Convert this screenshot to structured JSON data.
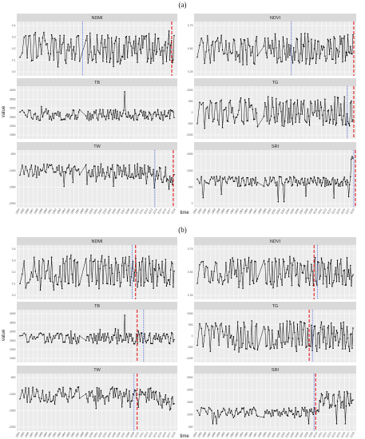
{
  "figure": {
    "a": {
      "label": "(a)",
      "panels": [
        {
          "name": "NDMI",
          "yticks": [
            "0.4",
            "0.3",
            "0.2",
            "0.1",
            "0.0"
          ],
          "vlines": [
            {
              "x": 0.41,
              "style": "dot"
            },
            {
              "x": 0.965,
              "style": "dash"
            }
          ],
          "seed": 11,
          "kind": "osc",
          "amp": 0.38
        },
        {
          "name": "NDVI",
          "yticks": [
            "0.75",
            "0.50",
            "0.25"
          ],
          "vlines": [
            {
              "x": 0.6,
              "style": "dot"
            },
            {
              "x": 0.985,
              "style": "dash"
            }
          ],
          "seed": 23,
          "kind": "osc",
          "amp": 0.35
        },
        {
          "name": "TB",
          "yticks": [
            "4000",
            "3500",
            "3000",
            "2500",
            "2000",
            "1500"
          ],
          "vlines": [],
          "seed": 37,
          "kind": "flat",
          "amp": 0.12
        },
        {
          "name": "TG",
          "yticks": [
            "1000",
            "500",
            "0",
            "-500",
            "-1000"
          ],
          "vlines": [
            {
              "x": 0.945,
              "style": "dot"
            },
            {
              "x": 0.985,
              "style": "dash"
            }
          ],
          "seed": 41,
          "kind": "osc",
          "amp": 0.35
        },
        {
          "name": "TW",
          "yticks": [
            "-500",
            "-1000",
            "-1500",
            "-2000"
          ],
          "vlines": [
            {
              "x": 0.86,
              "style": "dot"
            },
            {
              "x": 0.975,
              "style": "dash"
            }
          ],
          "seed": 53,
          "kind": "trendDown",
          "amp": 0.18
        },
        {
          "name": "SRI",
          "yticks": [
            "1500",
            "1000",
            "500",
            "0"
          ],
          "vlines": [
            {
              "x": 0.985,
              "style": "dot"
            },
            {
              "x": 0.995,
              "style": "dash"
            }
          ],
          "seed": 67,
          "kind": "flatSpike",
          "amp": 0.1
        }
      ]
    },
    "b": {
      "label": "(b)",
      "panels": [
        {
          "name": "NDMI",
          "yticks": [
            "0.4",
            "0.3",
            "0.2",
            "0.1",
            "0.0"
          ],
          "vlines": [
            {
              "x": 0.72,
              "style": "dot"
            },
            {
              "x": 0.74,
              "style": "dash"
            }
          ],
          "seed": 71,
          "kind": "osc",
          "amp": 0.38
        },
        {
          "name": "NDVI",
          "yticks": [
            "0.75",
            "0.50",
            "0.25"
          ],
          "vlines": [
            {
              "x": 0.74,
              "style": "dash"
            },
            {
              "x": 0.76,
              "style": "dot"
            }
          ],
          "seed": 83,
          "kind": "osc",
          "amp": 0.35
        },
        {
          "name": "TB",
          "yticks": [
            "4000",
            "3500",
            "3000",
            "2500",
            "2000",
            "1500"
          ],
          "vlines": [
            {
              "x": 0.75,
              "style": "dash"
            },
            {
              "x": 0.79,
              "style": "dot"
            }
          ],
          "seed": 97,
          "kind": "flat",
          "amp": 0.12
        },
        {
          "name": "TG",
          "yticks": [
            "1000",
            "500",
            "0",
            "-500",
            "-1000"
          ],
          "vlines": [
            {
              "x": 0.71,
              "style": "dash"
            },
            {
              "x": 0.73,
              "style": "dot"
            }
          ],
          "seed": 101,
          "kind": "osc",
          "amp": 0.35
        },
        {
          "name": "TW",
          "yticks": [
            "-500",
            "-1000",
            "-1500",
            "-2000"
          ],
          "vlines": [
            {
              "x": 0.73,
              "style": "dot"
            },
            {
              "x": 0.75,
              "style": "dash"
            }
          ],
          "seed": 113,
          "kind": "trendDown",
          "amp": 0.18
        },
        {
          "name": "SRI",
          "yticks": [
            "2500",
            "2000",
            "1500",
            "1000",
            "500"
          ],
          "vlines": [
            {
              "x": 0.74,
              "style": "dot"
            },
            {
              "x": 0.75,
              "style": "dash"
            }
          ],
          "seed": 127,
          "kind": "flatStep",
          "amp": 0.1
        }
      ]
    },
    "xticks": [
      "1984",
      "1985",
      "1986",
      "1987",
      "1988",
      "1989",
      "1990",
      "1991",
      "1992",
      "1993",
      "1994",
      "1995",
      "1996",
      "1997",
      "1998",
      "1999",
      "2000",
      "2001",
      "2002",
      "2003",
      "2004",
      "2005",
      "2006",
      "2007",
      "2008",
      "2009",
      "2010",
      "2011",
      "2012",
      "2013",
      "2014",
      "2015",
      "2016",
      "2017",
      "2018"
    ],
    "xlabel": "time",
    "ylabel": "value"
  },
  "chart_data": [
    {
      "type": "line",
      "title": "NDMI",
      "xlabel": "time",
      "ylabel": "value",
      "x_range": [
        "1984",
        "2018"
      ],
      "ylim": [
        0.0,
        0.45
      ],
      "grid": true
    },
    {
      "type": "line",
      "title": "NDVI",
      "xlabel": "time",
      "ylabel": "value",
      "x_range": [
        "1984",
        "2018"
      ],
      "ylim": [
        0.2,
        0.85
      ],
      "grid": true
    },
    {
      "type": "line",
      "title": "TB",
      "xlabel": "time",
      "ylabel": "value",
      "x_range": [
        "1984",
        "2018"
      ],
      "ylim": [
        1500,
        4000
      ],
      "grid": true
    },
    {
      "type": "line",
      "title": "TG",
      "xlabel": "time",
      "ylabel": "value",
      "x_range": [
        "1984",
        "2018"
      ],
      "ylim": [
        -1000,
        1000
      ],
      "grid": true
    },
    {
      "type": "line",
      "title": "TW",
      "xlabel": "time",
      "ylabel": "value",
      "x_range": [
        "1984",
        "2018"
      ],
      "ylim": [
        -2000,
        -500
      ],
      "grid": true
    },
    {
      "type": "line",
      "title": "SRI",
      "xlabel": "time",
      "ylabel": "value",
      "x_range": [
        "1984",
        "2018"
      ],
      "ylim": [
        0,
        1500
      ],
      "grid": true
    }
  ],
  "colors": {
    "panel_bg": "#ebebeb",
    "strip_bg": "#d9d9d9",
    "grid": "#ffffff",
    "line": "#000000",
    "red": "#e31a1c",
    "blue": "#1f3fd0"
  }
}
